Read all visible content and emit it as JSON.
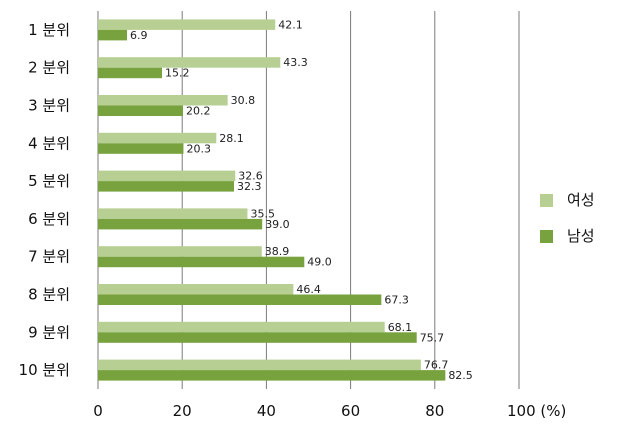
{
  "chart_data": {
    "type": "bar",
    "orientation": "horizontal",
    "categories": [
      "1 분위",
      "2 분위",
      "3 분위",
      "4 분위",
      "5 분위",
      "6 분위",
      "7 분위",
      "8 분위",
      "9 분위",
      "10 분위"
    ],
    "series": [
      {
        "name": "여성",
        "color": "#b8cf93",
        "values": [
          42.1,
          43.3,
          30.8,
          28.1,
          32.6,
          35.5,
          38.9,
          46.4,
          68.1,
          76.7
        ],
        "labels": [
          "42.1",
          "43.3",
          "30.8",
          "28.1",
          "32.6",
          "35.5",
          "38.9",
          "46.4",
          "68.1",
          "76.7"
        ]
      },
      {
        "name": "남성",
        "color": "#77a23d",
        "values": [
          6.9,
          15.2,
          20.2,
          20.3,
          32.3,
          39.0,
          49.0,
          67.3,
          75.7,
          82.5
        ],
        "labels": [
          "6.9",
          "15.2",
          "20.2",
          "20.3",
          "32.3",
          "39.0",
          "49.0",
          "67.3",
          "75.7",
          "82.5"
        ]
      }
    ],
    "x_ticks": [
      "0",
      "20",
      "40",
      "60",
      "80",
      "100 (%)"
    ],
    "xlim": [
      0,
      100
    ],
    "grid": "vertical",
    "legend_position": "right"
  }
}
